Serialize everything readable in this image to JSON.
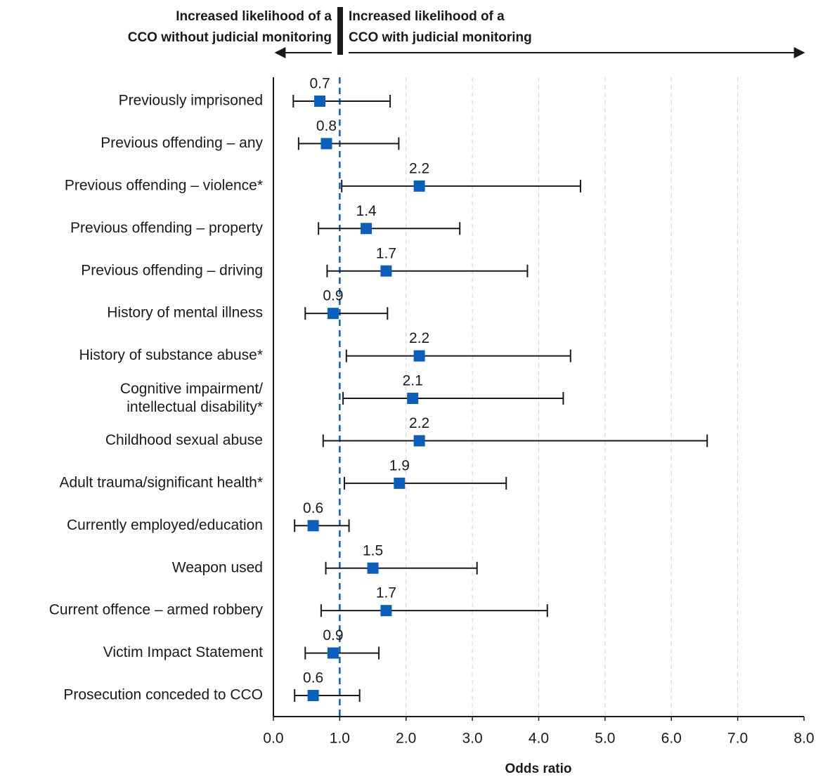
{
  "chart_data": {
    "type": "forest",
    "annotations": {
      "left": [
        "Increased likelihood of a",
        "CCO without judicial monitoring"
      ],
      "right": [
        "Increased likelihood of a",
        "CCO with judicial monitoring"
      ]
    },
    "x_label": "Odds ratio",
    "categories": [
      "Previously imprisoned",
      "Previous offending – any",
      "Previous offending – violence*",
      "Previous offending – property",
      "Previous offending – driving",
      "History of mental illness",
      "History of substance abuse*",
      "Cognitive impairment/\nintellectual disability*",
      "Childhood sexual abuse",
      "Adult trauma/significant health*",
      "Currently employed/education",
      "Weapon used",
      "Current offence – armed robbery",
      "Victim Impact Statement",
      "Prosecution conceded to CCO"
    ],
    "values": [
      0.7,
      0.8,
      2.2,
      1.4,
      1.7,
      0.9,
      2.2,
      2.1,
      2.2,
      1.9,
      0.6,
      1.5,
      1.7,
      0.9,
      0.6
    ],
    "lower": [
      0.3,
      0.38,
      1.03,
      0.68,
      0.81,
      0.48,
      1.1,
      1.05,
      0.75,
      1.07,
      0.32,
      0.79,
      0.72,
      0.48,
      0.32
    ],
    "upper": [
      1.76,
      1.89,
      4.63,
      2.81,
      3.83,
      1.72,
      4.48,
      4.37,
      6.54,
      3.51,
      1.14,
      3.07,
      4.13,
      1.59,
      1.3
    ],
    "color": "#0a5fbd",
    "reference_line": 1,
    "xlim": [
      0,
      8
    ],
    "xticks": [
      {
        "value": 0,
        "label": "0.0"
      },
      {
        "value": 1,
        "label": "1.0"
      },
      {
        "value": 2,
        "label": "2.0"
      },
      {
        "value": 3,
        "label": "3.0"
      },
      {
        "value": 4,
        "label": "4.0"
      },
      {
        "value": 5,
        "label": "5.0"
      },
      {
        "value": 6,
        "label": "6.0"
      },
      {
        "value": 7,
        "label": "7.0"
      },
      {
        "value": 8,
        "label": "8.0"
      }
    ],
    "grid": true
  }
}
